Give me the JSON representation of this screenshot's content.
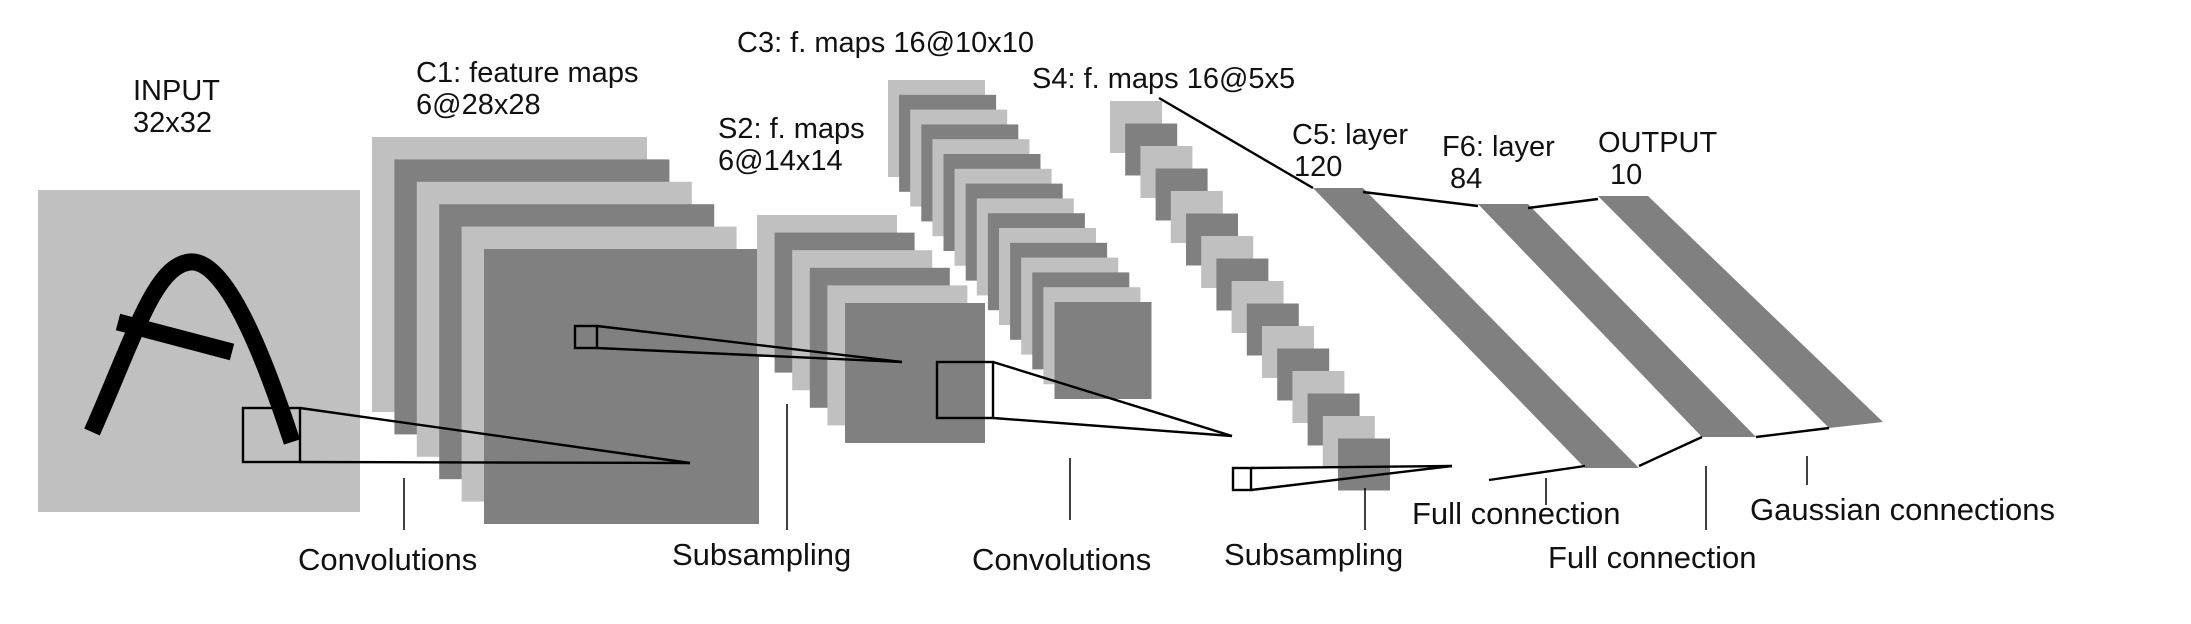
{
  "colors": {
    "light_map": "#c0c0c0",
    "dark_map": "#808080",
    "line": "#000000"
  },
  "layers": {
    "input": {
      "name": "INPUT",
      "size": "32x32"
    },
    "c1": {
      "name": "C1: feature maps",
      "size": "6@28x28"
    },
    "s2": {
      "name": "S2: f. maps",
      "size": "6@14x14"
    },
    "c3": {
      "name": "C3: f. maps 16@10x10"
    },
    "s4": {
      "name": "S4: f. maps 16@5x5"
    },
    "c5": {
      "name": "C5: layer",
      "size": "120"
    },
    "f6": {
      "name": "F6: layer",
      "size": "84"
    },
    "output": {
      "name": "OUTPUT",
      "size": "10"
    }
  },
  "operations": {
    "conv1": "Convolutions",
    "sub1": "Subsampling",
    "conv2": "Convolutions",
    "sub2": "Subsampling",
    "full1": "Full connection",
    "full2": "Full connection",
    "gauss": "Gaussian connections"
  }
}
